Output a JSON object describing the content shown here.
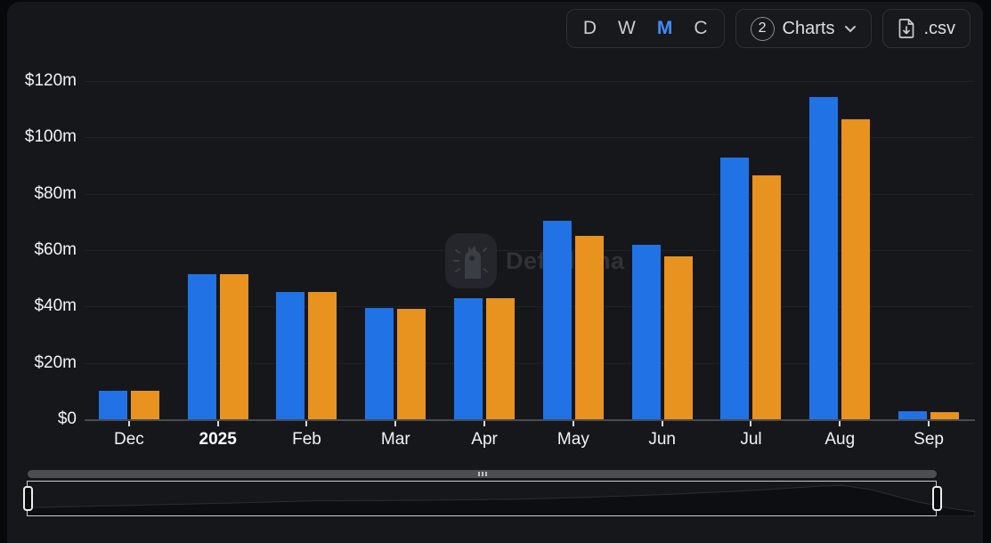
{
  "toolbar": {
    "time_buttons": [
      {
        "label": "D",
        "active": false
      },
      {
        "label": "W",
        "active": false
      },
      {
        "label": "M",
        "active": true
      },
      {
        "label": "C",
        "active": false
      }
    ],
    "charts_dropdown": {
      "count": "2",
      "label": "Charts"
    },
    "csv_button": {
      "label": ".csv"
    }
  },
  "watermark": {
    "text": "DefiLlama"
  },
  "chart_data": {
    "type": "bar",
    "categories": [
      "Dec",
      "2025",
      "Feb",
      "Mar",
      "Apr",
      "May",
      "Jun",
      "Jul",
      "Aug",
      "Sep"
    ],
    "emphasized_category": "2025",
    "series": [
      {
        "name": "blue",
        "color": "#2172e5",
        "values": [
          10.1,
          51.5,
          45.3,
          39.4,
          43.1,
          70.3,
          62.0,
          93.0,
          114.4,
          2.8
        ]
      },
      {
        "name": "orange",
        "color": "#e8921f",
        "values": [
          10.0,
          51.6,
          45.3,
          39.3,
          42.9,
          65.2,
          57.7,
          86.4,
          106.3,
          2.5
        ]
      }
    ],
    "y_ticks": [
      "$0",
      "$20m",
      "$40m",
      "$60m",
      "$80m",
      "$100m",
      "$120m"
    ],
    "ylim": [
      0,
      120
    ],
    "unit": "$m",
    "grid": "horizontal",
    "legend": "none",
    "brush_profile": [
      [
        0,
        0.76
      ],
      [
        0.08,
        0.71
      ],
      [
        0.18,
        0.65
      ],
      [
        0.3,
        0.57
      ],
      [
        0.42,
        0.55
      ],
      [
        0.52,
        0.52
      ],
      [
        0.6,
        0.46
      ],
      [
        0.68,
        0.38
      ],
      [
        0.76,
        0.28
      ],
      [
        0.84,
        0.15
      ],
      [
        0.86,
        0.13
      ],
      [
        0.89,
        0.25
      ],
      [
        0.94,
        0.6
      ],
      [
        0.98,
        0.8
      ],
      [
        1,
        0.87
      ]
    ]
  },
  "colors": {
    "page_bg": "#07080a",
    "panel_bg": "#15171b",
    "bar_blue": "#2172e5",
    "bar_orange": "#e8921f",
    "grid_line": "#1f2226",
    "axis_line": "#484b50",
    "label_text": "#f2f3f4",
    "active_timeframe": "#3f8cff",
    "scrollbar": "#4b4e53",
    "brush_border": "#c9cdd3"
  }
}
